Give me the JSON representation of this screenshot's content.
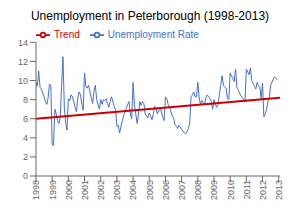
{
  "chart_data": {
    "type": "line",
    "title": "Unemployment in Peterborough (1998-2013)",
    "series": [
      {
        "name": "Unemployment Rate",
        "color": "#4472C4",
        "x": [
          1998.0,
          1998.0833,
          1998.1667,
          1998.25,
          1998.3333,
          1998.4167,
          1998.5,
          1998.5833,
          1998.6667,
          1998.75,
          1998.8333,
          1998.9167,
          1999.0,
          1999.0833,
          1999.1667,
          1999.25,
          1999.3333,
          1999.4167,
          1999.5,
          1999.5833,
          1999.6667,
          1999.75,
          1999.8333,
          1999.9167,
          2000.0,
          2000.0833,
          2000.1667,
          2000.25,
          2000.3333,
          2000.4167,
          2000.5,
          2000.5833,
          2000.6667,
          2000.75,
          2000.8333,
          2000.9167,
          2001.0,
          2001.0833,
          2001.1667,
          2001.25,
          2001.3333,
          2001.4167,
          2001.5,
          2001.5833,
          2001.6667,
          2001.75,
          2001.8333,
          2001.9167,
          2002.0,
          2002.0833,
          2002.1667,
          2002.25,
          2002.3333,
          2002.4167,
          2002.5,
          2002.5833,
          2002.6667,
          2002.75,
          2002.8333,
          2002.9167,
          2003.0,
          2003.0833,
          2003.1667,
          2003.25,
          2003.3333,
          2003.4167,
          2003.5,
          2003.5833,
          2003.6667,
          2003.75,
          2003.8333,
          2003.9167,
          2004.0,
          2004.0833,
          2004.1667,
          2004.25,
          2004.3333,
          2004.4167,
          2004.5,
          2004.5833,
          2004.6667,
          2004.75,
          2004.8333,
          2004.9167,
          2005.0,
          2005.0833,
          2005.1667,
          2005.25,
          2005.3333,
          2005.4167,
          2005.5,
          2005.5833,
          2005.6667,
          2005.75,
          2005.8333,
          2005.9167,
          2006.0,
          2006.0833,
          2006.1667,
          2006.25,
          2006.3333,
          2006.4167,
          2006.5,
          2006.5833,
          2006.6667,
          2006.75,
          2006.8333,
          2006.9167,
          2007.0,
          2007.0833,
          2007.1667,
          2007.25,
          2007.3333,
          2007.4167,
          2007.5,
          2007.5833,
          2007.6667,
          2007.75,
          2007.8333,
          2007.9167,
          2008.0,
          2008.0833,
          2008.1667,
          2008.25,
          2008.3333,
          2008.4167,
          2008.5,
          2008.5833,
          2008.6667,
          2008.75,
          2008.8333,
          2008.9167,
          2009.0,
          2009.0833,
          2009.1667,
          2009.25,
          2009.3333,
          2009.4167,
          2009.5,
          2009.5833,
          2009.6667,
          2009.75,
          2009.8333,
          2009.9167,
          2010.0,
          2010.0833,
          2010.1667,
          2010.25,
          2010.3333,
          2010.4167,
          2010.5,
          2010.5833,
          2010.6667,
          2010.75,
          2010.8333,
          2010.9167,
          2011.0,
          2011.0833,
          2011.1667,
          2011.25,
          2011.3333,
          2011.4167,
          2011.5,
          2011.5833,
          2011.6667,
          2011.75,
          2011.8333,
          2011.9167,
          2012.0,
          2012.0833,
          2012.1667,
          2012.25,
          2012.3333,
          2012.4167,
          2012.5,
          2012.5833,
          2012.6667,
          2012.75,
          2012.8333,
          2012.9167
        ],
        "values": [
          9.8,
          9.4,
          11.0,
          9.3,
          9.1,
          8.7,
          8.3,
          7.8,
          7.5,
          8.2,
          9.6,
          9.5,
          3.3,
          3.2,
          7.0,
          6.5,
          5.8,
          5.5,
          6.2,
          9.5,
          12.5,
          7.2,
          5.5,
          4.8,
          8.1,
          7.9,
          8.5,
          8.3,
          7.8,
          7.2,
          6.7,
          8.2,
          8.8,
          8.5,
          7.5,
          6.9,
          10.8,
          9.4,
          9.2,
          9.5,
          8.8,
          8.2,
          7.6,
          8.9,
          9.5,
          8.0,
          7.5,
          7.0,
          8.0,
          7.5,
          8.0,
          7.9,
          8.1,
          7.6,
          7.2,
          7.8,
          8.3,
          7.8,
          7.3,
          6.9,
          5.2,
          5.3,
          4.5,
          5.2,
          5.8,
          6.3,
          6.8,
          7.1,
          7.5,
          7.8,
          6.5,
          6.0,
          9.8,
          7.5,
          6.5,
          5.5,
          6.5,
          7.8,
          7.4,
          7.8,
          7.6,
          6.5,
          6.3,
          6.1,
          6.6,
          6.3,
          5.9,
          6.5,
          7.3,
          7.1,
          6.5,
          6.8,
          7.2,
          6.7,
          6.2,
          5.8,
          8.3,
          8.1,
          7.5,
          7.2,
          6.8,
          6.3,
          6.1,
          5.4,
          5.2,
          5.0,
          5.3,
          5.1,
          4.9,
          4.7,
          4.5,
          4.4,
          4.6,
          5.0,
          5.5,
          8.3,
          8.5,
          8.8,
          8.3,
          8.3,
          9.8,
          8.2,
          7.5,
          7.9,
          7.7,
          7.5,
          8.2,
          8.5,
          8.3,
          8.1,
          7.8,
          7.0,
          8.0,
          7.5,
          7.2,
          7.5,
          8.5,
          9.5,
          10.5,
          9.5,
          9.3,
          9.2,
          8.1,
          8.0,
          10.8,
          10.5,
          10.2,
          9.9,
          11.2,
          9.3,
          9.0,
          8.7,
          8.4,
          8.2,
          8.0,
          7.8,
          11.2,
          10.9,
          10.6,
          11.3,
          10.0,
          9.7,
          9.4,
          9.1,
          9.8,
          9.5,
          9.3,
          8.1,
          9.7,
          6.2,
          6.5,
          7.0,
          7.8,
          8.2,
          9.5,
          9.8,
          10.2,
          10.4,
          10.2,
          10.1
        ]
      },
      {
        "name": "Trend",
        "color": "#CC0000",
        "x": [
          1998.0,
          2013.08
        ],
        "values": [
          6.0,
          8.2
        ]
      }
    ],
    "xlim": [
      1998.0,
      2013.08
    ],
    "xticks": [
      1998,
      1999,
      2000,
      2001,
      2002,
      2003,
      2004,
      2005,
      2006,
      2007,
      2008,
      2009,
      2010,
      2011,
      2012,
      2013
    ],
    "ylim": [
      0,
      14
    ],
    "yticks": [
      0,
      2,
      4,
      6,
      8,
      10,
      12,
      14
    ],
    "grid": false,
    "legend": "upper left"
  }
}
